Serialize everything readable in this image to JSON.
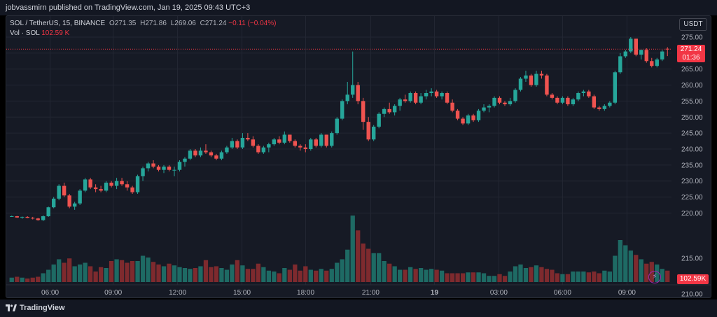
{
  "header": {
    "publisher": "jobvassmirn published on TradingView.com, Jan 19, 2025 09:43 UTC+3"
  },
  "legend": {
    "symbol": "SOL / TetherUS, 15, BINANCE",
    "open": "O271.35",
    "high": "H271.86",
    "low": "L269.06",
    "close": "C271.24",
    "change": "−0.11 (−0.04%)",
    "vol_label": "Vol · SOL",
    "vol_value": "102.59 K"
  },
  "currency": "USDT",
  "last_price": {
    "price": "271.24",
    "countdown": "01:36"
  },
  "volume_tag": "102.59K",
  "footer": {
    "brand": "TradingView"
  },
  "colors": {
    "up": "#26a69a",
    "down": "#ef5350",
    "up_vol": "#1e6a64",
    "down_vol": "#7e2a2e",
    "grid": "#232733",
    "price_line": "#f23645"
  },
  "chart_data": {
    "type": "candlestick",
    "title": "SOL / TetherUS, 15, BINANCE",
    "price_axis": {
      "min": 212,
      "max": 275,
      "ticks": [
        "275.00",
        "270.00",
        "265.00",
        "260.00",
        "255.00",
        "250.00",
        "245.00",
        "240.00",
        "235.00",
        "230.00",
        "225.00",
        "220.00",
        "215.00",
        "210.00"
      ]
    },
    "time_axis": [
      "06:00",
      "09:00",
      "12:00",
      "15:00",
      "18:00",
      "21:00",
      "19",
      "03:00",
      "06:00",
      "09:00"
    ],
    "last_price": 271.24,
    "series": [
      [
        219.0,
        219.2,
        218.8,
        219.0,
        5
      ],
      [
        219.0,
        219.1,
        218.5,
        218.6,
        6
      ],
      [
        218.6,
        218.9,
        218.2,
        218.8,
        5
      ],
      [
        218.8,
        219.0,
        218.4,
        218.5,
        4
      ],
      [
        218.5,
        218.8,
        218.0,
        218.3,
        5
      ],
      [
        218.3,
        218.5,
        217.6,
        217.8,
        6
      ],
      [
        217.8,
        219.3,
        217.5,
        219.0,
        10
      ],
      [
        219.0,
        222.0,
        218.8,
        221.8,
        14
      ],
      [
        221.8,
        225.0,
        221.5,
        224.5,
        20
      ],
      [
        224.5,
        229.0,
        224.0,
        228.5,
        26
      ],
      [
        228.5,
        229.5,
        225.0,
        225.5,
        22
      ],
      [
        225.5,
        226.0,
        221.5,
        222.0,
        27
      ],
      [
        222.0,
        223.5,
        221.0,
        223.0,
        18
      ],
      [
        223.0,
        227.5,
        222.5,
        227.0,
        20
      ],
      [
        227.0,
        231.0,
        226.5,
        230.5,
        22
      ],
      [
        230.5,
        231.0,
        227.5,
        228.0,
        18
      ],
      [
        228.0,
        229.0,
        226.5,
        227.5,
        12
      ],
      [
        227.5,
        228.5,
        226.5,
        227.0,
        17
      ],
      [
        227.0,
        230.0,
        226.5,
        229.5,
        16
      ],
      [
        229.5,
        230.0,
        228.0,
        228.5,
        24
      ],
      [
        228.5,
        231.0,
        227.5,
        230.0,
        26
      ],
      [
        230.0,
        231.0,
        228.5,
        229.0,
        25
      ],
      [
        229.0,
        230.0,
        227.0,
        228.0,
        22
      ],
      [
        228.0,
        228.5,
        226.0,
        226.5,
        24
      ],
      [
        226.5,
        232.0,
        226.0,
        231.5,
        24
      ],
      [
        231.5,
        234.5,
        230.0,
        234.0,
        30
      ],
      [
        234.0,
        236.0,
        233.0,
        235.5,
        28
      ],
      [
        235.5,
        236.5,
        234.0,
        234.5,
        23
      ],
      [
        234.5,
        235.0,
        233.0,
        233.5,
        20
      ],
      [
        233.5,
        235.0,
        232.5,
        234.5,
        18
      ],
      [
        234.5,
        235.0,
        233.0,
        233.5,
        21
      ],
      [
        233.5,
        234.5,
        231.5,
        233.5,
        19
      ],
      [
        233.5,
        236.5,
        233.0,
        236.0,
        17
      ],
      [
        236.0,
        237.5,
        234.5,
        237.0,
        16
      ],
      [
        237.0,
        240.0,
        236.5,
        239.5,
        15
      ],
      [
        239.5,
        240.0,
        237.5,
        238.0,
        16
      ],
      [
        238.0,
        240.5,
        237.5,
        239.5,
        18
      ],
      [
        239.5,
        241.5,
        238.5,
        239.0,
        25
      ],
      [
        239.0,
        239.5,
        237.5,
        238.0,
        17
      ],
      [
        238.0,
        238.5,
        236.5,
        237.0,
        18
      ],
      [
        237.0,
        239.5,
        236.5,
        239.0,
        16
      ],
      [
        239.0,
        241.0,
        238.5,
        240.5,
        14
      ],
      [
        240.5,
        243.5,
        240.0,
        242.5,
        20
      ],
      [
        242.5,
        243.0,
        240.0,
        240.5,
        25
      ],
      [
        240.5,
        245.0,
        240.0,
        243.5,
        19
      ],
      [
        243.5,
        245.0,
        242.5,
        243.0,
        15
      ],
      [
        243.0,
        244.0,
        240.5,
        241.0,
        15
      ],
      [
        241.0,
        241.5,
        238.5,
        239.0,
        21
      ],
      [
        239.0,
        241.0,
        238.5,
        240.5,
        17
      ],
      [
        240.5,
        242.0,
        239.0,
        241.5,
        13
      ],
      [
        241.5,
        243.5,
        241.0,
        243.0,
        12
      ],
      [
        243.0,
        244.0,
        241.5,
        242.0,
        10
      ],
      [
        242.0,
        245.5,
        241.5,
        244.5,
        16
      ],
      [
        244.5,
        244.5,
        242.0,
        242.5,
        14
      ],
      [
        242.5,
        243.0,
        240.5,
        241.0,
        20
      ],
      [
        241.0,
        241.5,
        239.5,
        240.5,
        13
      ],
      [
        240.5,
        241.5,
        239.0,
        240.0,
        18
      ],
      [
        240.0,
        243.5,
        239.5,
        243.0,
        14
      ],
      [
        243.0,
        243.5,
        240.5,
        241.0,
        13
      ],
      [
        241.0,
        245.0,
        240.5,
        244.5,
        15
      ],
      [
        244.5,
        244.5,
        240.5,
        241.0,
        13
      ],
      [
        241.0,
        245.5,
        240.5,
        245.0,
        15
      ],
      [
        245.0,
        250.0,
        244.5,
        249.5,
        22
      ],
      [
        249.5,
        255.5,
        249.0,
        255.0,
        26
      ],
      [
        255.0,
        261.0,
        254.0,
        257.0,
        37
      ],
      [
        257.0,
        270.5,
        256.0,
        260.0,
        76
      ],
      [
        260.0,
        261.0,
        254.0,
        255.0,
        59
      ],
      [
        255.0,
        256.0,
        246.0,
        248.5,
        44
      ],
      [
        248.5,
        250.0,
        242.5,
        243.0,
        38
      ],
      [
        243.0,
        247.5,
        242.5,
        247.0,
        33
      ],
      [
        247.0,
        251.5,
        246.5,
        251.0,
        33
      ],
      [
        251.0,
        253.0,
        250.0,
        252.5,
        24
      ],
      [
        252.5,
        254.5,
        251.0,
        251.5,
        21
      ],
      [
        251.5,
        254.0,
        250.5,
        253.5,
        18
      ],
      [
        253.5,
        256.0,
        252.0,
        255.5,
        14
      ],
      [
        255.5,
        257.0,
        254.5,
        255.0,
        14
      ],
      [
        255.0,
        258.0,
        254.5,
        257.5,
        17
      ],
      [
        257.5,
        258.0,
        254.0,
        254.5,
        15
      ],
      [
        254.5,
        257.5,
        254.0,
        256.5,
        16
      ],
      [
        256.5,
        258.5,
        255.5,
        257.5,
        14
      ],
      [
        257.5,
        259.0,
        256.5,
        258.0,
        15
      ],
      [
        258.0,
        258.5,
        256.0,
        256.5,
        14
      ],
      [
        256.5,
        258.0,
        255.5,
        257.5,
        13
      ],
      [
        257.5,
        258.0,
        254.0,
        254.5,
        10
      ],
      [
        254.5,
        255.5,
        251.5,
        252.0,
        10
      ],
      [
        252.0,
        252.5,
        249.0,
        249.5,
        10
      ],
      [
        249.5,
        250.0,
        247.5,
        248.0,
        10
      ],
      [
        248.0,
        251.0,
        247.5,
        250.5,
        11
      ],
      [
        250.5,
        251.0,
        248.5,
        249.0,
        11
      ],
      [
        249.0,
        252.5,
        248.5,
        252.0,
        11
      ],
      [
        252.0,
        254.0,
        251.5,
        253.0,
        10
      ],
      [
        253.0,
        254.0,
        251.5,
        253.5,
        7
      ],
      [
        253.5,
        256.5,
        253.0,
        256.0,
        7
      ],
      [
        256.0,
        256.5,
        254.0,
        254.5,
        9
      ],
      [
        254.5,
        255.0,
        253.5,
        254.0,
        7
      ],
      [
        254.0,
        256.0,
        253.5,
        255.0,
        12
      ],
      [
        255.0,
        259.0,
        254.5,
        258.5,
        18
      ],
      [
        258.5,
        262.5,
        258.0,
        262.0,
        20
      ],
      [
        262.0,
        264.5,
        261.0,
        263.0,
        16
      ],
      [
        263.0,
        263.5,
        259.5,
        260.0,
        17
      ],
      [
        260.0,
        264.5,
        259.5,
        263.5,
        19
      ],
      [
        263.5,
        264.5,
        262.0,
        263.0,
        17
      ],
      [
        263.0,
        263.5,
        256.5,
        257.0,
        15
      ],
      [
        257.0,
        257.5,
        255.5,
        256.0,
        14
      ],
      [
        256.0,
        256.5,
        254.0,
        254.5,
        10
      ],
      [
        254.5,
        256.5,
        254.0,
        256.0,
        9
      ],
      [
        256.0,
        256.5,
        253.5,
        254.0,
        9
      ],
      [
        254.0,
        256.0,
        253.5,
        255.5,
        12
      ],
      [
        255.5,
        258.0,
        255.0,
        257.5,
        12
      ],
      [
        257.5,
        258.5,
        256.5,
        258.0,
        12
      ],
      [
        258.0,
        258.5,
        256.0,
        256.5,
        11
      ],
      [
        256.5,
        257.0,
        252.5,
        253.0,
        12
      ],
      [
        253.0,
        253.5,
        252.0,
        252.5,
        10
      ],
      [
        252.5,
        254.0,
        252.0,
        253.5,
        13
      ],
      [
        253.5,
        255.0,
        253.0,
        254.5,
        12
      ],
      [
        254.5,
        264.5,
        254.0,
        264.0,
        30
      ],
      [
        264.0,
        270.0,
        263.5,
        269.0,
        48
      ],
      [
        269.0,
        271.0,
        268.5,
        270.5,
        42
      ],
      [
        270.5,
        275.0,
        270.0,
        274.5,
        36
      ],
      [
        274.5,
        274.5,
        269.0,
        269.5,
        31
      ],
      [
        269.5,
        271.0,
        268.0,
        271.0,
        26
      ],
      [
        271.0,
        271.5,
        267.0,
        267.5,
        21
      ],
      [
        267.5,
        268.5,
        265.5,
        266.0,
        23
      ],
      [
        266.0,
        268.5,
        265.5,
        268.0,
        20
      ],
      [
        268.0,
        271.0,
        267.5,
        270.5,
        15
      ],
      [
        271.35,
        271.86,
        269.06,
        271.24,
        13
      ]
    ]
  }
}
